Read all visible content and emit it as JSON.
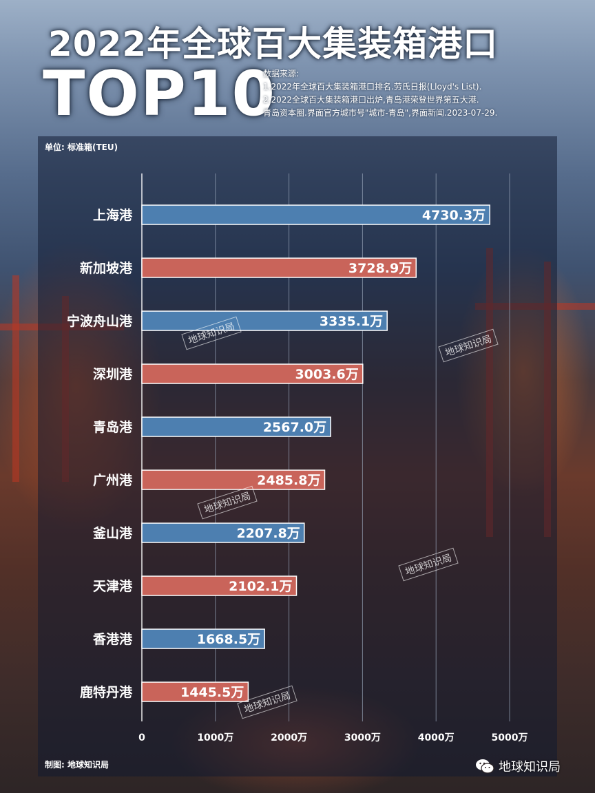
{
  "header": {
    "title": "2022年全球百大集装箱港口",
    "subtitle": "TOP10",
    "source_lines": [
      "数据来源:",
      "1.2022年全球百大集装箱港口排名.劳氏日报(Lloyd's List).",
      "2.2022全球百大集装箱港口出炉,青岛港荣登世界第五大港.",
      "青岛资本圈.界面官方城市号\"城市-青岛\",界面新闻.2023-07-29."
    ]
  },
  "unit_label": "单位: 标准箱(TEU)",
  "credit": "制图: 地球知识局",
  "brand": "地球知识局",
  "watermark": "地球知识局",
  "colors": {
    "blue": "#4d7fb0",
    "red": "#c9645a",
    "gridline": "#9aa6bb"
  },
  "chart_data": {
    "type": "bar",
    "orientation": "horizontal",
    "categories": [
      "上海港",
      "新加坡港",
      "宁波舟山港",
      "深圳港",
      "青岛港",
      "广州港",
      "釜山港",
      "天津港",
      "香港港",
      "鹿特丹港"
    ],
    "values": [
      4730.3,
      3728.9,
      3335.1,
      3003.6,
      2567.0,
      2485.8,
      2207.8,
      2102.1,
      1668.5,
      1445.5
    ],
    "value_labels": [
      "4730.3万",
      "3728.9万",
      "3335.1万",
      "3003.6万",
      "2567.0万",
      "2485.8万",
      "2207.8万",
      "2102.1万",
      "1668.5万",
      "1445.5万"
    ],
    "bar_colors": [
      "blue",
      "red",
      "blue",
      "red",
      "blue",
      "red",
      "blue",
      "red",
      "blue",
      "red"
    ],
    "xticks": [
      0,
      1000,
      2000,
      3000,
      4000,
      5000
    ],
    "xtick_labels": [
      "0",
      "1000万",
      "2000万",
      "3000万",
      "4000万",
      "5000万"
    ],
    "xlim": [
      0,
      5000
    ],
    "unit": "标准箱(TEU)",
    "grid": true
  }
}
